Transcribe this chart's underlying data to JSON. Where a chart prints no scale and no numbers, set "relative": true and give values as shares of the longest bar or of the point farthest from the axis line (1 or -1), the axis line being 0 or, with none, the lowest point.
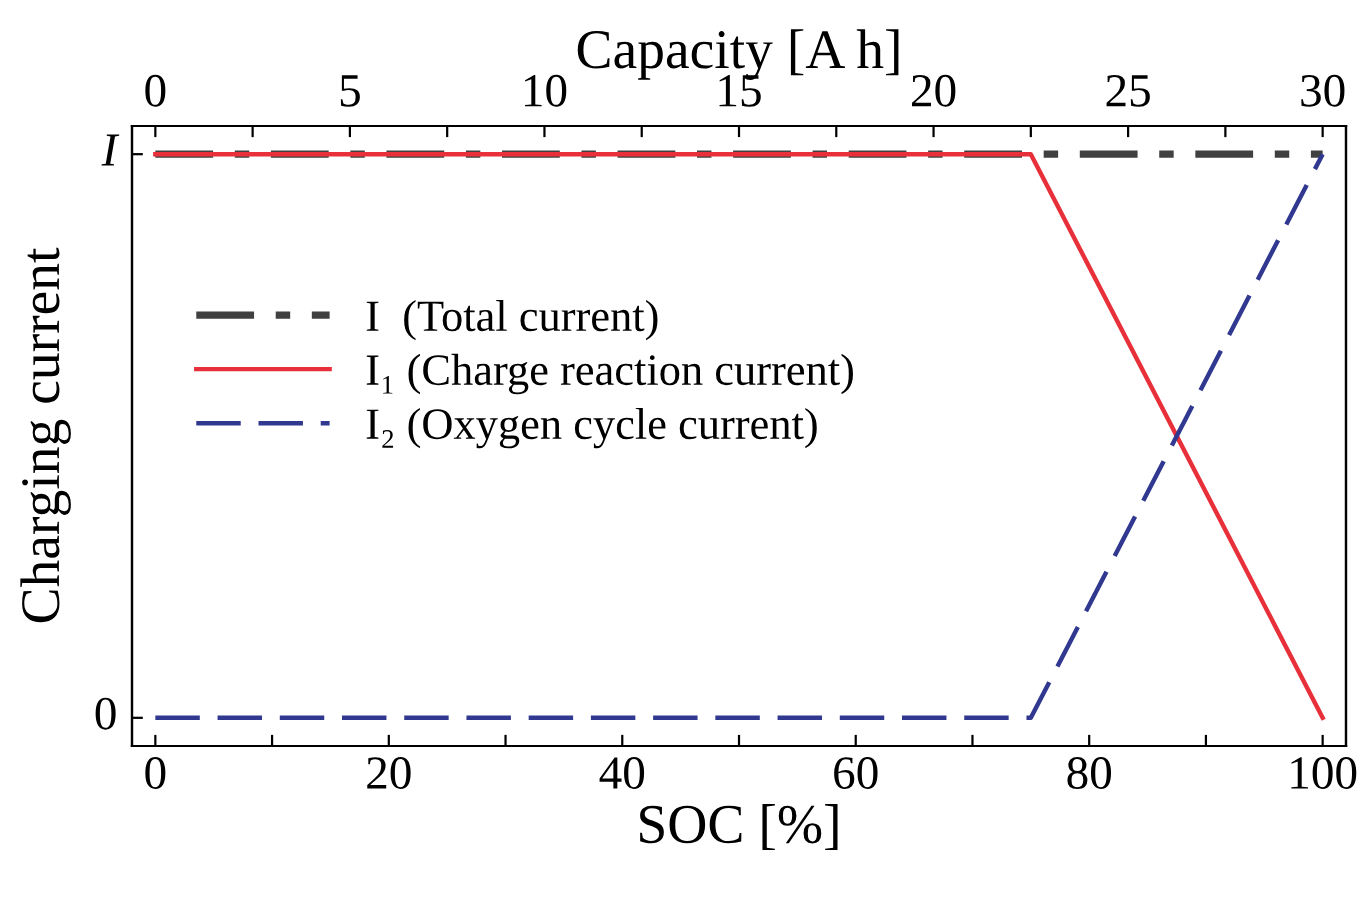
{
  "chart_data": {
    "type": "line",
    "xlabel": "SOC [%]",
    "ylabel": "Charging current",
    "x2label": "Capacity [A h]",
    "xlim": [
      -2,
      102
    ],
    "xticks": [
      0,
      {
        "value": 10,
        "label": null
      },
      20,
      {
        "value": 30,
        "label": null
      },
      40,
      {
        "value": 50,
        "label": null
      },
      60,
      {
        "value": 70,
        "label": null
      },
      80,
      {
        "value": 90,
        "label": null
      },
      100
    ],
    "x2lim": [
      -0.6,
      30.6
    ],
    "x2ticks": [
      0,
      {
        "value": 2.5,
        "label": null
      },
      5,
      {
        "value": 7.5,
        "label": null
      },
      10,
      {
        "value": 12.5,
        "label": null
      },
      15,
      {
        "value": 17.5,
        "label": null
      },
      20,
      {
        "value": 22.5,
        "label": null
      },
      25,
      {
        "value": 27.5,
        "label": null
      },
      30
    ],
    "relative": true,
    "annotations": [
      "0",
      "I"
    ],
    "grid": false,
    "legend": "left",
    "marker": "none",
    "series": [
      {
        "name": "I  (Total current)",
        "color": "#404040",
        "line_style": "dashdot",
        "x": [
          0,
          100
        ],
        "values": [
          1,
          1
        ]
      },
      {
        "name": "I₁ (Charge reaction current)",
        "color": "#e8303a",
        "line_style": "solid",
        "x": [
          0,
          75,
          100
        ],
        "values": [
          1,
          1,
          0
        ]
      },
      {
        "name": "I₂ (Oxygen cycle current)",
        "color": "#303890",
        "line_style": "dashed",
        "x": [
          0,
          75,
          100
        ],
        "values": [
          0,
          0,
          1
        ]
      }
    ]
  }
}
